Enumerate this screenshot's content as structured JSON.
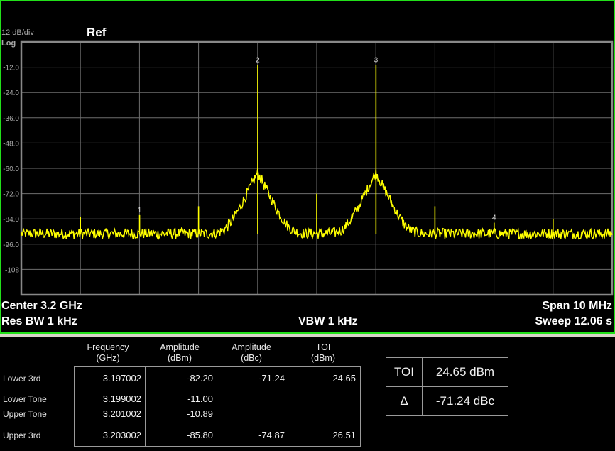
{
  "chart_data": {
    "type": "line",
    "title": "",
    "scale_label": "12 dB/div",
    "scale_type": "Log",
    "ref_label": "Ref",
    "xlabel": "",
    "ylabel": "",
    "x_unit": "GHz",
    "y_unit": "dBm",
    "xlim": [
      3.195,
      3.205
    ],
    "ylim": [
      -120,
      0
    ],
    "y_ticks": [
      "-12.0",
      "-24.0",
      "-36.0",
      "-48.0",
      "-60.0",
      "-72.0",
      "-84.0",
      "-96.0",
      "-108"
    ],
    "y_tick_values": [
      -12,
      -24,
      -36,
      -48,
      -60,
      -72,
      -84,
      -96,
      -108
    ],
    "x_divisions": 10,
    "grid": true,
    "trace_color": "#ffff00",
    "noise_floor_dbm": -91,
    "markers": [
      {
        "label": "1",
        "x": 3.197002,
        "y": -82.2
      },
      {
        "label": "2",
        "x": 3.199002,
        "y": -11.0
      },
      {
        "label": "3",
        "x": 3.201002,
        "y": -10.89
      },
      {
        "label": "4",
        "x": 3.203002,
        "y": -85.8
      }
    ],
    "spurs": [
      {
        "x": 3.196,
        "y": -83
      },
      {
        "x": 3.198,
        "y": -78
      },
      {
        "x": 3.2,
        "y": -72
      },
      {
        "x": 3.202,
        "y": -78
      },
      {
        "x": 3.204,
        "y": -84
      }
    ]
  },
  "footer": {
    "center": "Center  3.2 GHz",
    "res_bw": "Res BW  1 kHz",
    "vbw": "VBW  1 kHz",
    "span": "Span 10 MHz",
    "sweep": "Sweep  12.06 s"
  },
  "table": {
    "headers": [
      [
        "Frequency",
        "(GHz)"
      ],
      [
        "Amplitude",
        "(dBm)"
      ],
      [
        "Amplitude",
        "(dBc)"
      ],
      [
        "TOI",
        "(dBm)"
      ]
    ],
    "rows": [
      {
        "label": "Lower 3rd",
        "freq": "3.197002",
        "amp_dbm": "-82.20",
        "amp_dbc": "-71.24",
        "toi": "24.65"
      },
      {
        "label": "Lower Tone",
        "freq": "3.199002",
        "amp_dbm": "-11.00",
        "amp_dbc": "",
        "toi": ""
      },
      {
        "label": "Upper Tone",
        "freq": "3.201002",
        "amp_dbm": "-10.89",
        "amp_dbc": "",
        "toi": ""
      },
      {
        "label": "Upper 3rd",
        "freq": "3.203002",
        "amp_dbm": "-85.80",
        "amp_dbc": "-74.87",
        "toi": "26.51"
      }
    ]
  },
  "summary": {
    "toi_label": "TOI",
    "toi_value": "24.65 dBm",
    "delta_label": "Δ",
    "delta_value": "-71.24 dBc"
  }
}
